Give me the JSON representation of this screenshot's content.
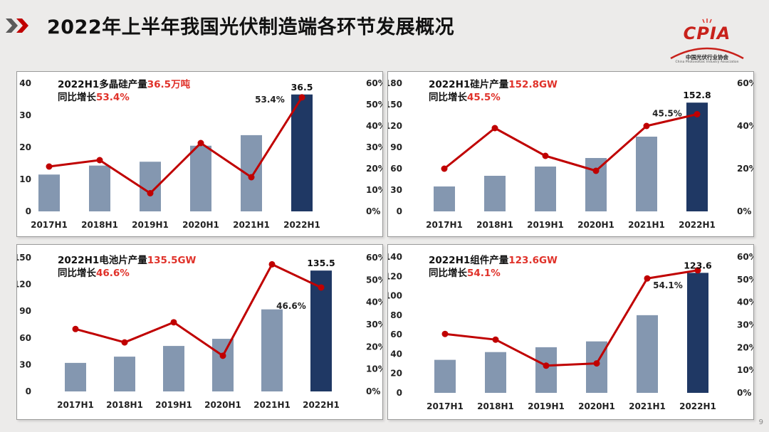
{
  "title": "2022年上半年我国光伏制造端各环节发展概况",
  "logo": {
    "name": "CPIA",
    "cn": "中国光伏行业协会",
    "en": "China Photovoltaic Industry Association"
  },
  "page_number": "9",
  "colors": {
    "bar": "#8497b0",
    "bar_highlight": "#1f3864",
    "line": "#c00000",
    "highlight_text": "#e0322a"
  },
  "chart_data": [
    {
      "type": "bar",
      "caption": {
        "prefix": "2022H1多晶硅产量",
        "value": "36.5万吨",
        "growth_prefix": "同比增长",
        "growth": "53.4%"
      },
      "categories": [
        "2017H1",
        "2018H1",
        "2019H1",
        "2020H1",
        "2021H1",
        "2022H1"
      ],
      "series": [
        {
          "values": [
            11.5,
            14.3,
            15.5,
            20.5,
            23.8,
            36.5
          ]
        },
        {
          "type": "line",
          "axis": "right",
          "values": [
            21,
            24,
            8.5,
            32,
            16,
            53.4
          ]
        }
      ],
      "y_left": {
        "ticks": [
          "0",
          "10",
          "20",
          "30",
          "40"
        ],
        "max": 40
      },
      "y_right": {
        "ticks": [
          "0%",
          "10%",
          "20%",
          "30%",
          "40%",
          "50%",
          "60%"
        ],
        "max": 60
      },
      "bar_label": "36.5",
      "line_label": "53.4%"
    },
    {
      "type": "bar",
      "caption": {
        "prefix": "2022H1硅片产量",
        "value": "152.8GW",
        "growth_prefix": "同比增长",
        "growth": "45.5%"
      },
      "categories": [
        "2017H1",
        "2018H1",
        "2019H1",
        "2020H1",
        "2021H1",
        "2022H1"
      ],
      "series": [
        {
          "values": [
            35,
            50,
            63,
            75,
            105,
            152.8
          ]
        },
        {
          "type": "line",
          "axis": "right",
          "values": [
            20,
            39,
            26,
            19,
            40,
            45.5
          ]
        }
      ],
      "y_left": {
        "ticks": [
          "0",
          "30",
          "60",
          "90",
          "120",
          "150",
          "180"
        ],
        "max": 180
      },
      "y_right": {
        "ticks": [
          "0%",
          "20%",
          "40%",
          "60%"
        ],
        "max": 60
      },
      "bar_label": "152.8",
      "line_label": "45.5%"
    },
    {
      "type": "bar",
      "caption": {
        "prefix": "2022H1电池片产量",
        "value": "135.5GW",
        "growth_prefix": "同比增长",
        "growth": "46.6%"
      },
      "categories": [
        "2017H1",
        "2018H1",
        "2019H1",
        "2020H1",
        "2021H1",
        "2022H1"
      ],
      "series": [
        {
          "values": [
            32,
            39,
            51,
            59,
            92,
            135.5
          ]
        },
        {
          "type": "line",
          "axis": "right",
          "values": [
            28,
            22,
            31,
            16,
            57,
            46.6
          ]
        }
      ],
      "y_left": {
        "ticks": [
          "0",
          "30",
          "60",
          "90",
          "120",
          "150"
        ],
        "max": 150
      },
      "y_right": {
        "ticks": [
          "0%",
          "10%",
          "20%",
          "30%",
          "40%",
          "50%",
          "60%"
        ],
        "max": 60
      },
      "bar_label": "135.5",
      "line_label": "46.6%"
    },
    {
      "type": "bar",
      "caption": {
        "prefix": "2022H1组件产量",
        "value": "123.6GW",
        "growth_prefix": "同比增长",
        "growth": "54.1%"
      },
      "categories": [
        "2017H1",
        "2018H1",
        "2019H1",
        "2020H1",
        "2021H1",
        "2022H1"
      ],
      "series": [
        {
          "values": [
            34,
            42,
            47,
            53,
            80,
            123.6
          ]
        },
        {
          "type": "line",
          "axis": "right",
          "values": [
            26,
            23.5,
            12,
            13,
            50.5,
            54.1
          ]
        }
      ],
      "y_left": {
        "ticks": [
          "0",
          "20",
          "40",
          "60",
          "80",
          "100",
          "120",
          "140"
        ],
        "max": 140
      },
      "y_right": {
        "ticks": [
          "0%",
          "10%",
          "20%",
          "30%",
          "40%",
          "50%",
          "60%"
        ],
        "max": 60
      },
      "bar_label": "123.6",
      "line_label": "54.1%"
    }
  ]
}
